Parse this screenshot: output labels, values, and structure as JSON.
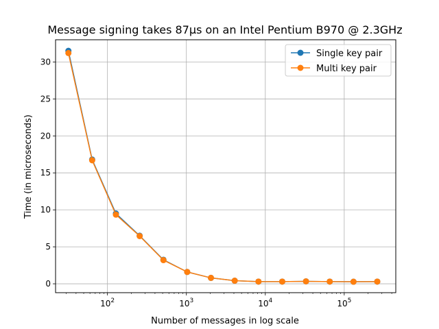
{
  "chart_data": {
    "type": "line",
    "title": "Message signing takes 87µs on an Intel Pentium B970 @ 2.3GHz",
    "xlabel": "Number of messages in log scale",
    "ylabel": "Time (in microseconds)",
    "x_scale": "log",
    "xlim": [
      22,
      450000
    ],
    "ylim": [
      -1.2,
      33
    ],
    "grid": true,
    "legend_position": "top-right",
    "x": [
      32,
      64,
      128,
      256,
      512,
      1024,
      2048,
      4096,
      8192,
      16384,
      32768,
      65536,
      131072,
      262144
    ],
    "series": [
      {
        "name": "Single key pair",
        "color": "#1f77b4",
        "values": [
          31.5,
          16.8,
          9.5,
          6.5,
          3.25,
          1.6,
          0.8,
          0.42,
          0.3,
          0.3,
          0.33,
          0.3,
          0.28,
          0.3
        ]
      },
      {
        "name": "Multi key pair",
        "color": "#ff7f0e",
        "values": [
          31.2,
          16.7,
          9.35,
          6.45,
          3.2,
          1.6,
          0.8,
          0.42,
          0.3,
          0.3,
          0.33,
          0.3,
          0.28,
          0.3
        ]
      }
    ],
    "y_ticks": [
      0,
      5,
      10,
      15,
      20,
      25,
      30
    ],
    "x_ticks": [
      {
        "value": 100,
        "base": "10",
        "exp": "2"
      },
      {
        "value": 1000,
        "base": "10",
        "exp": "3"
      },
      {
        "value": 10000,
        "base": "10",
        "exp": "4"
      },
      {
        "value": 100000,
        "base": "10",
        "exp": "5"
      }
    ]
  }
}
